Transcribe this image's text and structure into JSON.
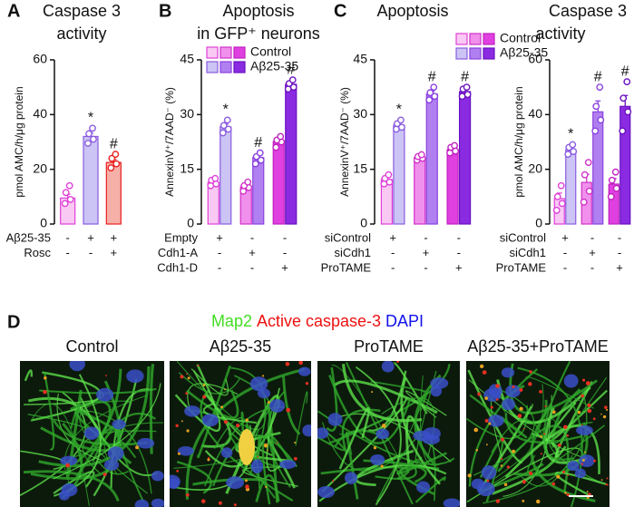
{
  "chart_data": [
    {
      "type": "bar",
      "panel_label": "A",
      "title": [
        "Caspase 3",
        "activity"
      ],
      "y_label": "pmol AMC/h/μg protein",
      "ylim": [
        0,
        60
      ],
      "yticks": [
        0,
        20,
        40,
        60
      ],
      "series": [
        {
          "fills": [
            "#f9c9f4",
            "#cbc4f4",
            "#f7b0a8"
          ],
          "strokes": [
            "#e040d8",
            "#8b5ce0",
            "#e82020"
          ],
          "values": [
            9.5,
            32,
            22.5
          ],
          "errors": [
            1.4,
            1.2,
            1.1
          ],
          "points": [
            [
              7.5,
              9,
              11.5,
              14
            ],
            [
              29.5,
              31,
              33,
              35
            ],
            [
              20.5,
              22,
              24,
              25.5
            ]
          ],
          "annotations": [
            null,
            "*",
            "#"
          ]
        }
      ],
      "conditions": [
        {
          "name": "Aβ25-35",
          "marks": [
            "-",
            "+",
            "+"
          ]
        },
        {
          "name": "Rosc",
          "marks": [
            "-",
            "-",
            "+"
          ]
        }
      ]
    },
    {
      "type": "bar",
      "panel_label": "B",
      "title": [
        "Apoptosis",
        "in GFP⁺ neurons"
      ],
      "y_label": "AnnexinV⁺/7AAD⁻ (%)",
      "ylim": [
        0,
        45
      ],
      "yticks": [
        0,
        15,
        30,
        45
      ],
      "legend": true,
      "series": [
        {
          "name": "Control",
          "fills": [
            "#f9c9f4",
            "#f090ec",
            "#e040e0"
          ],
          "strokes": [
            "#e040d8",
            "#d030c8",
            "#c020c0"
          ],
          "values": [
            11.4,
            10.2,
            22.6
          ],
          "errors": [
            0.5,
            0.6,
            0.8
          ],
          "points": [
            [
              10.5,
              11,
              12,
              12.5
            ],
            [
              9,
              10,
              10.5,
              11.5
            ],
            [
              21,
              22.5,
              23,
              24
            ]
          ],
          "annotations": [
            null,
            null,
            null
          ]
        },
        {
          "name": "Aβ25-35",
          "fills": [
            "#cbc4f4",
            "#b080f0",
            "#8a2be2"
          ],
          "strokes": [
            "#8b5ce0",
            "#8a40e0",
            "#6a10c0"
          ],
          "values": [
            26.6,
            18.2,
            38.3
          ],
          "errors": [
            0.8,
            0.6,
            0.6
          ],
          "points": [
            [
              25,
              26,
              27,
              28.5
            ],
            [
              16.5,
              17.5,
              18.5,
              19.5
            ],
            [
              37,
              37.5,
              38.5,
              39.5
            ]
          ],
          "annotations": [
            "*",
            "#",
            "#"
          ]
        }
      ],
      "conditions": [
        {
          "name": "Empty",
          "marks": [
            "+",
            "-",
            "-"
          ]
        },
        {
          "name": "Cdh1-A",
          "marks": [
            "-",
            "+",
            "-"
          ]
        },
        {
          "name": "Cdh1-D",
          "marks": [
            "-",
            "-",
            "+"
          ]
        }
      ]
    },
    {
      "type": "bar",
      "panel_label": "C",
      "title": [
        "Apoptosis"
      ],
      "y_label": "AnnexinV⁺/7AAD⁻ (%)",
      "ylim": [
        0,
        45
      ],
      "yticks": [
        0,
        15,
        30,
        45
      ],
      "legend": true,
      "series": [
        {
          "name": "Control",
          "fills": [
            "#f9c9f4",
            "#f090ec",
            "#e040e0"
          ],
          "strokes": [
            "#e040d8",
            "#d030c8",
            "#c020c0"
          ],
          "values": [
            12.2,
            18.2,
            20.4
          ],
          "errors": [
            0.6,
            0.4,
            0.6
          ],
          "points": [
            [
              11,
              11.5,
              12.5,
              13.5
            ],
            [
              17.5,
              18,
              18.5,
              19
            ],
            [
              19.5,
              20,
              21,
              21.5
            ]
          ],
          "annotations": [
            null,
            null,
            null
          ]
        },
        {
          "name": "Aβ25-35",
          "fills": [
            "#cbc4f4",
            "#b080f0",
            "#8a2be2"
          ],
          "strokes": [
            "#8b5ce0",
            "#8a40e0",
            "#6a10c0"
          ],
          "values": [
            27.1,
            35.6,
            36.3
          ],
          "errors": [
            0.6,
            0.8,
            0.7
          ],
          "points": [
            [
              26,
              26.5,
              27.5,
              28.5
            ],
            [
              34,
              35,
              36,
              37.5
            ],
            [
              35,
              35.5,
              37,
              37.5
            ]
          ],
          "annotations": [
            "*",
            "#",
            "#"
          ]
        }
      ],
      "conditions": [
        {
          "name": "siControl",
          "marks": [
            "+",
            "-",
            "-"
          ]
        },
        {
          "name": "siCdh1",
          "marks": [
            "-",
            "+",
            "-"
          ]
        },
        {
          "name": "ProTAME",
          "marks": [
            "-",
            "-",
            "+"
          ]
        }
      ]
    },
    {
      "type": "bar",
      "title": [
        "Caspase 3",
        "activity"
      ],
      "y_label": "pmol AMC/h/μg protein",
      "ylim": [
        0,
        60
      ],
      "yticks": [
        0,
        20,
        40,
        60
      ],
      "series": [
        {
          "fills": [
            "#f9c9f4",
            "#f090ec",
            "#e040e0"
          ],
          "strokes": [
            "#e040d8",
            "#d030c8",
            "#c020c0"
          ],
          "values": [
            9.3,
            15.2,
            14.6
          ],
          "errors": [
            2,
            3,
            2
          ],
          "points": [
            [
              5,
              7.5,
              10,
              14
            ],
            [
              8,
              12,
              18,
              22.5
            ],
            [
              10,
              13,
              16,
              19
            ]
          ],
          "annotations": [
            null,
            null,
            null
          ]
        },
        {
          "fills": [
            "#cbc4f4",
            "#b080f0",
            "#8a2be2"
          ],
          "strokes": [
            "#8b5ce0",
            "#8a40e0",
            "#6a10c0"
          ],
          "values": [
            27.2,
            41,
            43
          ],
          "errors": [
            1,
            4,
            4
          ],
          "points": [
            [
              25.5,
              26.5,
              28,
              29
            ],
            [
              34,
              38,
              43,
              50
            ],
            [
              34,
              41,
              46,
              52
            ]
          ],
          "annotations": [
            "*",
            "#",
            "#"
          ]
        }
      ],
      "conditions": [
        {
          "name": "siControl",
          "marks": [
            "+",
            "-",
            "-"
          ]
        },
        {
          "name": "siCdh1",
          "marks": [
            "-",
            "+",
            "-"
          ]
        },
        {
          "name": "ProTAME",
          "marks": [
            "-",
            "-",
            "+"
          ]
        }
      ]
    }
  ],
  "panel_d": {
    "label": "D",
    "stains": [
      {
        "text": "Map2",
        "color": "#44dd22"
      },
      {
        "text": "Active caspase-3",
        "color": "#ee1111"
      },
      {
        "text": "DAPI",
        "color": "#1111ee"
      }
    ],
    "images": [
      "Control",
      "Aβ25-35",
      "ProTAME",
      "Aβ25-35+ProTAME"
    ]
  }
}
